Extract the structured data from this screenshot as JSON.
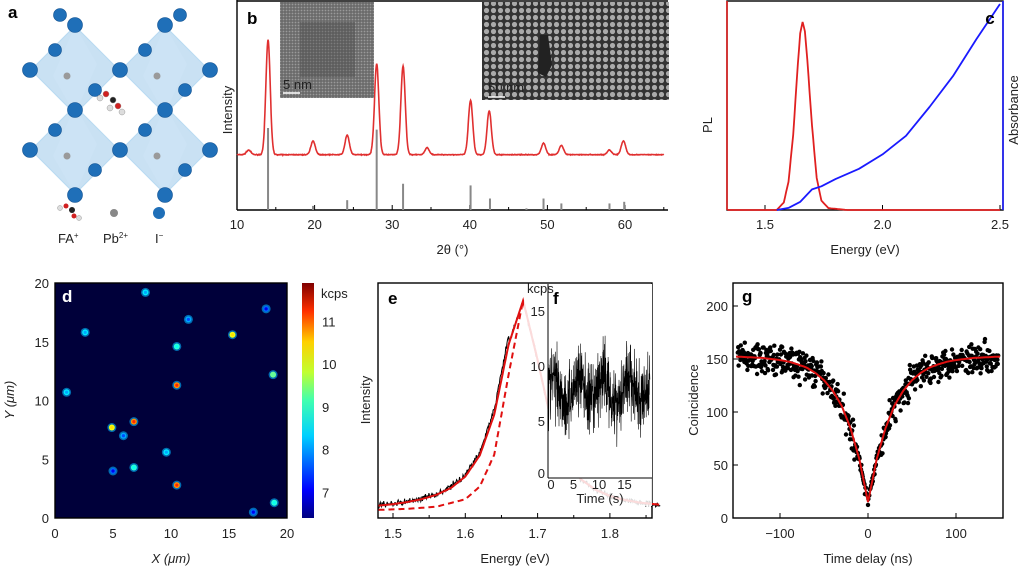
{
  "panel_a": {
    "letter": "a",
    "legend": [
      {
        "label": "FA",
        "sup": "+"
      },
      {
        "label": "Pb",
        "sup": "2+"
      },
      {
        "label": "I",
        "sup": "−"
      }
    ],
    "colors": {
      "iodide": "#1f6fb8",
      "lead": "#9a9a9a",
      "octahedron": "#9cc8ea"
    }
  },
  "chart_data": [
    {
      "id": "b",
      "letter": "b",
      "type": "line",
      "xlabel": "2θ (°)",
      "ylabel": "Intensity",
      "xlim": [
        10,
        65
      ],
      "xticks": [
        10,
        20,
        30,
        40,
        50,
        60
      ],
      "color": "#e03030",
      "stick_color": "#888888",
      "measured_peaks": [
        {
          "x": 11.5,
          "y": 4
        },
        {
          "x": 14.0,
          "y": 100
        },
        {
          "x": 19.8,
          "y": 12
        },
        {
          "x": 24.2,
          "y": 17
        },
        {
          "x": 28.0,
          "y": 79
        },
        {
          "x": 31.4,
          "y": 77
        },
        {
          "x": 34.5,
          "y": 6
        },
        {
          "x": 40.1,
          "y": 47
        },
        {
          "x": 42.5,
          "y": 38
        },
        {
          "x": 49.5,
          "y": 10
        },
        {
          "x": 51.8,
          "y": 8
        },
        {
          "x": 58.0,
          "y": 4
        },
        {
          "x": 59.8,
          "y": 12
        }
      ],
      "reference_sticks": [
        {
          "x": 14.0,
          "y": 100
        },
        {
          "x": 19.8,
          "y": 5
        },
        {
          "x": 24.2,
          "y": 12
        },
        {
          "x": 28.0,
          "y": 98
        },
        {
          "x": 31.4,
          "y": 32
        },
        {
          "x": 40.1,
          "y": 30
        },
        {
          "x": 42.6,
          "y": 14
        },
        {
          "x": 47.3,
          "y": 2
        },
        {
          "x": 49.5,
          "y": 14
        },
        {
          "x": 51.8,
          "y": 8
        },
        {
          "x": 58.0,
          "y": 8
        },
        {
          "x": 59.9,
          "y": 10
        }
      ],
      "insets": [
        {
          "scale_bar": "5 nm"
        },
        {
          "scale_bar": "50 nm"
        }
      ]
    },
    {
      "id": "c",
      "letter": "c",
      "type": "line",
      "xlabel": "Energy (eV)",
      "ylabel_left": "PL",
      "ylabel_right": "Absorbance",
      "xlim": [
        1.34,
        2.5
      ],
      "xticks": [
        "1.5",
        "2.0",
        "2.5"
      ],
      "series": [
        {
          "name": "PL",
          "color": "#e02020",
          "points": [
            [
              1.34,
              0
            ],
            [
              1.55,
              0
            ],
            [
              1.58,
              0.04
            ],
            [
              1.6,
              0.15
            ],
            [
              1.62,
              0.4
            ],
            [
              1.64,
              0.78
            ],
            [
              1.65,
              0.94
            ],
            [
              1.66,
              1.0
            ],
            [
              1.67,
              0.95
            ],
            [
              1.68,
              0.8
            ],
            [
              1.7,
              0.45
            ],
            [
              1.72,
              0.17
            ],
            [
              1.74,
              0.05
            ],
            [
              1.77,
              0.01
            ],
            [
              1.85,
              0
            ],
            [
              2.5,
              0
            ]
          ]
        },
        {
          "name": "Absorbance",
          "color": "#1a1aff",
          "points": [
            [
              1.55,
              0
            ],
            [
              1.6,
              0.01
            ],
            [
              1.65,
              0.04
            ],
            [
              1.7,
              0.1
            ],
            [
              1.74,
              0.115
            ],
            [
              1.8,
              0.15
            ],
            [
              1.9,
              0.2
            ],
            [
              2.0,
              0.27
            ],
            [
              2.1,
              0.36
            ],
            [
              2.2,
              0.5
            ],
            [
              2.3,
              0.65
            ],
            [
              2.4,
              0.83
            ],
            [
              2.5,
              1.0
            ]
          ]
        }
      ]
    },
    {
      "id": "d",
      "letter": "d",
      "type": "heatmap",
      "xlabel": "X (μm)",
      "ylabel": "Y (μm)",
      "xlim": [
        0,
        20
      ],
      "ylim": [
        0,
        20
      ],
      "xticks": [
        0,
        5,
        10,
        15,
        20
      ],
      "yticks": [
        0,
        5,
        10,
        15,
        20
      ],
      "colorbar": {
        "label": "kcps",
        "range": [
          6.4,
          11.9
        ],
        "ticks": [
          7,
          8,
          9,
          10,
          11
        ],
        "colormap": "jet"
      },
      "spots": [
        {
          "x": 7.8,
          "y": 19.2,
          "v": 8
        },
        {
          "x": 18.2,
          "y": 17.8,
          "v": 7
        },
        {
          "x": 11.5,
          "y": 16.9,
          "v": 7.5
        },
        {
          "x": 2.6,
          "y": 15.8,
          "v": 8
        },
        {
          "x": 15.3,
          "y": 15.6,
          "v": 10
        },
        {
          "x": 10.5,
          "y": 14.6,
          "v": 8.5
        },
        {
          "x": 18.8,
          "y": 12.2,
          "v": 9
        },
        {
          "x": 10.5,
          "y": 11.3,
          "v": 11
        },
        {
          "x": 1.0,
          "y": 10.7,
          "v": 8
        },
        {
          "x": 4.9,
          "y": 7.7,
          "v": 10
        },
        {
          "x": 6.8,
          "y": 8.2,
          "v": 11
        },
        {
          "x": 5.9,
          "y": 7.0,
          "v": 7.5
        },
        {
          "x": 9.6,
          "y": 5.6,
          "v": 8
        },
        {
          "x": 6.8,
          "y": 4.3,
          "v": 8.5
        },
        {
          "x": 10.5,
          "y": 2.8,
          "v": 11
        },
        {
          "x": 18.9,
          "y": 1.3,
          "v": 8.5
        },
        {
          "x": 5.0,
          "y": 4.0,
          "v": 7
        },
        {
          "x": 17.1,
          "y": 0.5,
          "v": 7
        }
      ]
    },
    {
      "id": "e",
      "letter": "e",
      "type": "line",
      "xlabel": "Energy (eV)",
      "ylabel": "Intensity",
      "xlim": [
        1.48,
        1.87
      ],
      "xticks": [
        "1.5",
        "1.6",
        "1.7",
        "1.8"
      ],
      "series": [
        {
          "color": "#000000",
          "style": "noisy"
        },
        {
          "color": "#e01010",
          "style": "solid",
          "points": [
            [
              1.48,
              0.03
            ],
            [
              1.5,
              0.037
            ],
            [
              1.52,
              0.047
            ],
            [
              1.54,
              0.061
            ],
            [
              1.56,
              0.081
            ],
            [
              1.58,
              0.113
            ],
            [
              1.6,
              0.167
            ],
            [
              1.62,
              0.267
            ],
            [
              1.64,
              0.459
            ],
            [
              1.66,
              0.791
            ],
            [
              1.68,
              0.997
            ],
            [
              1.7,
              0.717
            ],
            [
              1.72,
              0.41
            ],
            [
              1.74,
              0.242
            ],
            [
              1.76,
              0.154
            ],
            [
              1.78,
              0.105
            ],
            [
              1.8,
              0.076
            ],
            [
              1.82,
              0.057
            ],
            [
              1.84,
              0.045
            ],
            [
              1.87,
              0.034
            ]
          ]
        },
        {
          "color": "#e01010",
          "style": "dashed",
          "points": [
            [
              1.48,
              0.01
            ],
            [
              1.52,
              0.015
            ],
            [
              1.56,
              0.025
            ],
            [
              1.6,
              0.06
            ],
            [
              1.62,
              0.12
            ],
            [
              1.64,
              0.27
            ],
            [
              1.66,
              0.65
            ],
            [
              1.68,
              1.0
            ],
            [
              1.7,
              0.717
            ],
            [
              1.72,
              0.41
            ],
            [
              1.74,
              0.242
            ],
            [
              1.76,
              0.154
            ],
            [
              1.78,
              0.105
            ],
            [
              1.8,
              0.076
            ],
            [
              1.82,
              0.057
            ],
            [
              1.84,
              0.045
            ],
            [
              1.87,
              0.034
            ]
          ]
        }
      ]
    },
    {
      "id": "f",
      "letter": "f",
      "type": "line",
      "inset_of": "e",
      "xlabel": "Time (s)",
      "ylabel": "kcps",
      "xlim": [
        0,
        20
      ],
      "ylim": [
        0,
        17
      ],
      "xticks": [
        0,
        5,
        10,
        15
      ],
      "yticks": [
        0,
        5,
        10,
        15
      ],
      "series": [
        {
          "color": "#000000",
          "mean": 8,
          "range": [
            1,
            17
          ]
        }
      ]
    },
    {
      "id": "g",
      "letter": "g",
      "type": "scatter",
      "xlabel": "Time delay (ns)",
      "ylabel": "Coincidence",
      "xlim": [
        -150,
        150
      ],
      "ylim": [
        0,
        220
      ],
      "xticks": [
        "−100",
        "0",
        "100"
      ],
      "xtick_values": [
        -100,
        0,
        100
      ],
      "yticks": [
        0,
        50,
        100,
        150,
        200
      ],
      "fit": {
        "color": "#e01010",
        "points": [
          [
            -150,
            152.3
          ],
          [
            -120,
            151
          ],
          [
            -100,
            149
          ],
          [
            -90,
            147.5
          ],
          [
            -80,
            145
          ],
          [
            -70,
            142
          ],
          [
            -60,
            137
          ],
          [
            -50,
            130
          ],
          [
            -40,
            120
          ],
          [
            -30,
            106
          ],
          [
            -20,
            85
          ],
          [
            -10,
            56
          ],
          [
            0,
            15
          ],
          [
            10,
            56
          ],
          [
            20,
            85
          ],
          [
            30,
            106
          ],
          [
            40,
            120
          ],
          [
            50,
            130
          ],
          [
            60,
            137
          ],
          [
            70,
            142
          ],
          [
            80,
            145
          ],
          [
            90,
            147.5
          ],
          [
            100,
            149
          ],
          [
            120,
            151
          ],
          [
            150,
            152.3
          ]
        ]
      },
      "scatter_color": "#000000"
    }
  ]
}
